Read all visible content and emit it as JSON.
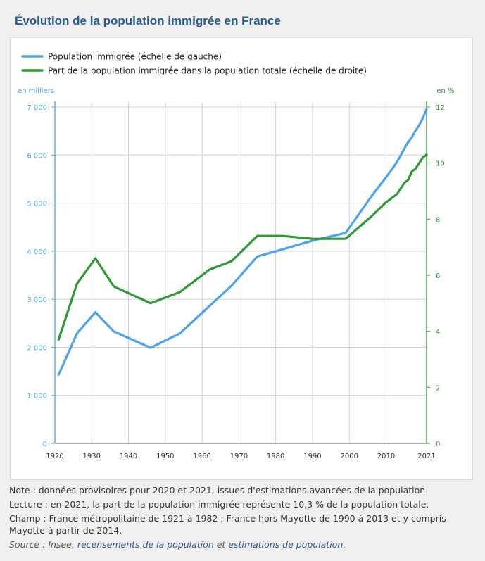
{
  "title": "Évolution de la population immigrée en France",
  "notes": {
    "note": "Note : données provisoires pour 2020 et 2021, issues d'estimations avancées de la population.",
    "lecture": "Lecture : en 2021, la part de la population immigrée représente 10,3 % de la population totale.",
    "champ": "Champ : France métropolitaine de 1921 à 1982 ; France hors Mayotte de 1990 à 2013 et y compris Mayotte à partir de 2014.",
    "source_prefix": "Source : Insee, ",
    "source_link1": "recensements de la population",
    "source_mid": " et ",
    "source_link2": "estimations de population",
    "source_suffix": "."
  },
  "colors": {
    "blue": "#4da3f0",
    "green": "#2e9a35",
    "title": "#2b5a8c",
    "grid": "#d0d0d0"
  },
  "chart_data": {
    "type": "line",
    "title": "Évolution de la population immigrée en France",
    "xlabel": "",
    "ylabel_left": "en milliers",
    "ylabel_right": "en %",
    "xlim": [
      1920,
      2021
    ],
    "ylim_left": [
      0,
      7000
    ],
    "ylim_right": [
      0,
      12
    ],
    "x_ticks": [
      "1920",
      "1930",
      "1940",
      "1950",
      "1960",
      "1970",
      "1980",
      "1990",
      "2000",
      "2010",
      "2021"
    ],
    "x_tick_values": [
      1920,
      1930,
      1940,
      1950,
      1960,
      1970,
      1980,
      1990,
      2000,
      2010,
      2021
    ],
    "y_left_ticks": [
      "0",
      "1 000",
      "2 000",
      "3 000",
      "4 000",
      "5 000",
      "6 000",
      "7 000"
    ],
    "y_left_tick_values": [
      0,
      1000,
      2000,
      3000,
      4000,
      5000,
      6000,
      7000
    ],
    "y_right_ticks": [
      "0",
      "2",
      "4",
      "6",
      "8",
      "10",
      "12"
    ],
    "y_right_tick_values": [
      0,
      2,
      4,
      6,
      8,
      10,
      12
    ],
    "grid": true,
    "legend_position": "top-left",
    "series": [
      {
        "name": "Population immigrée (échelle de gauche)",
        "axis": "left",
        "color": "#4da3f0",
        "x": [
          1921,
          1926,
          1931,
          1936,
          1946,
          1954,
          1962,
          1968,
          1975,
          1982,
          1990,
          1999,
          2006,
          2010,
          2012,
          2013,
          2014,
          2015,
          2016,
          2017,
          2018,
          2019,
          2020,
          2021
        ],
        "values": [
          1430,
          2290,
          2730,
          2330,
          1990,
          2290,
          2860,
          3280,
          3890,
          4040,
          4220,
          4380,
          5140,
          5540,
          5750,
          5860,
          6000,
          6140,
          6270,
          6370,
          6510,
          6620,
          6770,
          6960
        ]
      },
      {
        "name": "Part de la population immigrée dans la population totale (échelle de droite)",
        "axis": "right",
        "color": "#2e9a35",
        "x": [
          1921,
          1926,
          1931,
          1936,
          1946,
          1954,
          1962,
          1968,
          1975,
          1982,
          1990,
          1999,
          2006,
          2010,
          2012,
          2013,
          2014,
          2015,
          2016,
          2017,
          2018,
          2019,
          2020,
          2021
        ],
        "values": [
          3.7,
          5.7,
          6.6,
          5.6,
          5.0,
          5.4,
          6.2,
          6.5,
          7.4,
          7.4,
          7.3,
          7.3,
          8.1,
          8.6,
          8.8,
          8.9,
          9.1,
          9.3,
          9.4,
          9.7,
          9.8,
          10.0,
          10.2,
          10.3
        ]
      }
    ]
  }
}
